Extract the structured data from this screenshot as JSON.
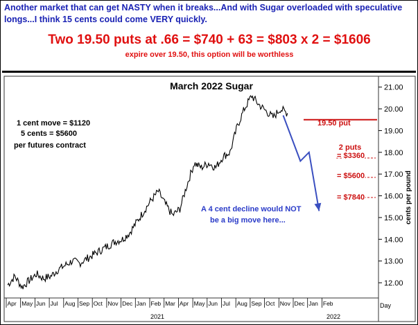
{
  "header": {
    "line1": "Another market that can get NASTY when it breaks...And with Sugar overloaded with speculative longs...I think 15 cents could come VERY quickly.",
    "line2": "Two 19.50 puts at .66 = $740 + 63 = $803 x 2 = $1606",
    "line3": "expire over 19.50, this option will be worthless"
  },
  "colors": {
    "blue_text": "#1a22b4",
    "red_text": "#e01010",
    "price_line": "#000000",
    "projection_arrow": "#3a4fc0",
    "put_line": "#cc1010"
  },
  "annotations": {
    "contract_note": [
      "1 cent move = $1120",
      "5 cents = $5600",
      "per futures contract"
    ],
    "put_label": "19.50 put",
    "puts_heading": "2 puts",
    "put_values": [
      "= $3360",
      "= $5600",
      "= $7840"
    ],
    "decline_note": [
      "A 4 cent decline would NOT",
      "be a big move here..."
    ]
  },
  "chart_data": {
    "type": "line",
    "title": "March 2022 Sugar",
    "ylabel": "cents per pound",
    "xlabel": "Day",
    "x_ticks": [
      "Apr",
      "May",
      "Jun",
      "Jul",
      "Aug",
      "Sep",
      "Oct",
      "Nov",
      "Dec",
      "Jan",
      "Feb",
      "Mar",
      "Apr",
      "May",
      "Jun",
      "Jul",
      "Aug",
      "Sep",
      "Oct",
      "Nov",
      "Dec",
      "Jan",
      "Feb"
    ],
    "year_labels": [
      "2021",
      "2022"
    ],
    "y_ticks": [
      "12.00",
      "13.00",
      "14.00",
      "15.00",
      "16.00",
      "17.00",
      "18.00",
      "19.00",
      "20.00",
      "21.00"
    ],
    "ylim": [
      11.3,
      21.5
    ],
    "grid": false,
    "series": [
      {
        "points": [
          [
            "Apr 2020",
            11.9
          ],
          [
            "Apr 2020",
            12.3
          ],
          [
            "May 2020",
            11.8
          ],
          [
            "May 2020",
            12.1
          ],
          [
            "Jun 2020",
            12.4
          ],
          [
            "Jun 2020",
            12.2
          ],
          [
            "Jul 2020",
            12.3
          ],
          [
            "Jul 2020",
            12.6
          ],
          [
            "Aug 2020",
            12.8
          ],
          [
            "Aug 2020",
            13.0
          ],
          [
            "Sep 2020",
            12.9
          ],
          [
            "Sep 2020",
            13.1
          ],
          [
            "Oct 2020",
            13.3
          ],
          [
            "Oct 2020",
            13.5
          ],
          [
            "Nov 2020",
            13.7
          ],
          [
            "Nov 2020",
            13.9
          ],
          [
            "Dec 2020",
            14.0
          ],
          [
            "Dec 2020",
            14.3
          ],
          [
            "Jan 2021",
            14.8
          ],
          [
            "Jan 2021",
            15.3
          ],
          [
            "Feb 2021",
            15.8
          ],
          [
            "Feb 2021",
            16.2
          ],
          [
            "Mar 2021",
            15.6
          ],
          [
            "Mar 2021",
            15.1
          ],
          [
            "Apr 2021",
            15.4
          ],
          [
            "Apr 2021",
            16.5
          ],
          [
            "May 2021",
            17.5
          ],
          [
            "May 2021",
            17.3
          ],
          [
            "Jun 2021",
            17.5
          ],
          [
            "Jun 2021",
            17.3
          ],
          [
            "Jul 2021",
            17.8
          ],
          [
            "Jul 2021",
            18.0
          ],
          [
            "Aug 2021",
            19.2
          ],
          [
            "Aug 2021",
            20.0
          ],
          [
            "Sep 2021",
            20.6
          ],
          [
            "Sep 2021",
            20.2
          ],
          [
            "Oct 2021",
            19.9
          ],
          [
            "Oct 2021",
            19.6
          ],
          [
            "Nov 2021",
            20.0
          ],
          [
            "Nov 2021",
            19.8
          ]
        ]
      }
    ],
    "put_strike": 19.5,
    "projection_path": [
      [
        "Nov 2021",
        19.7
      ],
      [
        "Dec 2021",
        17.6
      ],
      [
        "Jan 2022",
        18.0
      ],
      [
        "Jan 2022",
        15.3
      ]
    ]
  }
}
